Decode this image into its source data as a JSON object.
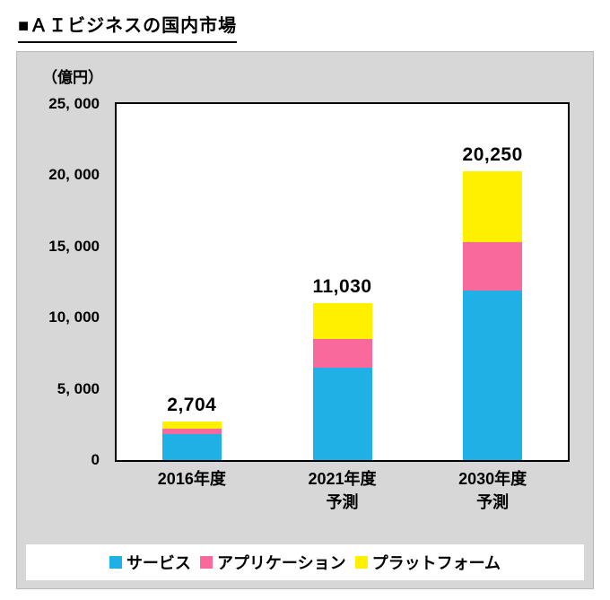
{
  "page": {
    "title": "■ＡＩビジネスの国内市場"
  },
  "chart_data": {
    "type": "bar",
    "stacked": true,
    "title": "ＡＩビジネスの国内市場",
    "unit_label": "（億円）",
    "ylim": [
      0,
      25000
    ],
    "grid": false,
    "legend_position": "bottom",
    "categories": [
      {
        "lines": [
          "2016年度"
        ]
      },
      {
        "lines": [
          "2021年度",
          "予測"
        ]
      },
      {
        "lines": [
          "2030年度",
          "予測"
        ]
      }
    ],
    "series": [
      {
        "key": "service",
        "name": "サービス",
        "color": "#1fb1e6",
        "values": [
          1804,
          6500,
          11900
        ]
      },
      {
        "key": "application",
        "name": "アプリケーション",
        "color": "#f9699b",
        "values": [
          400,
          2000,
          3400
        ]
      },
      {
        "key": "platform",
        "name": "プラットフォーム",
        "color": "#fff000",
        "values": [
          500,
          2530,
          4950
        ]
      }
    ],
    "totals": [
      "2,704",
      "11,030",
      "20,250"
    ],
    "total_values": [
      2704,
      11030,
      20250
    ],
    "yticks": [
      {
        "value": 0,
        "label": "0"
      },
      {
        "value": 5000,
        "label": "5, 000"
      },
      {
        "value": 10000,
        "label": "10, 000"
      },
      {
        "value": 15000,
        "label": "15, 000"
      },
      {
        "value": 20000,
        "label": "20, 000"
      },
      {
        "value": 25000,
        "label": "25, 000"
      }
    ]
  }
}
